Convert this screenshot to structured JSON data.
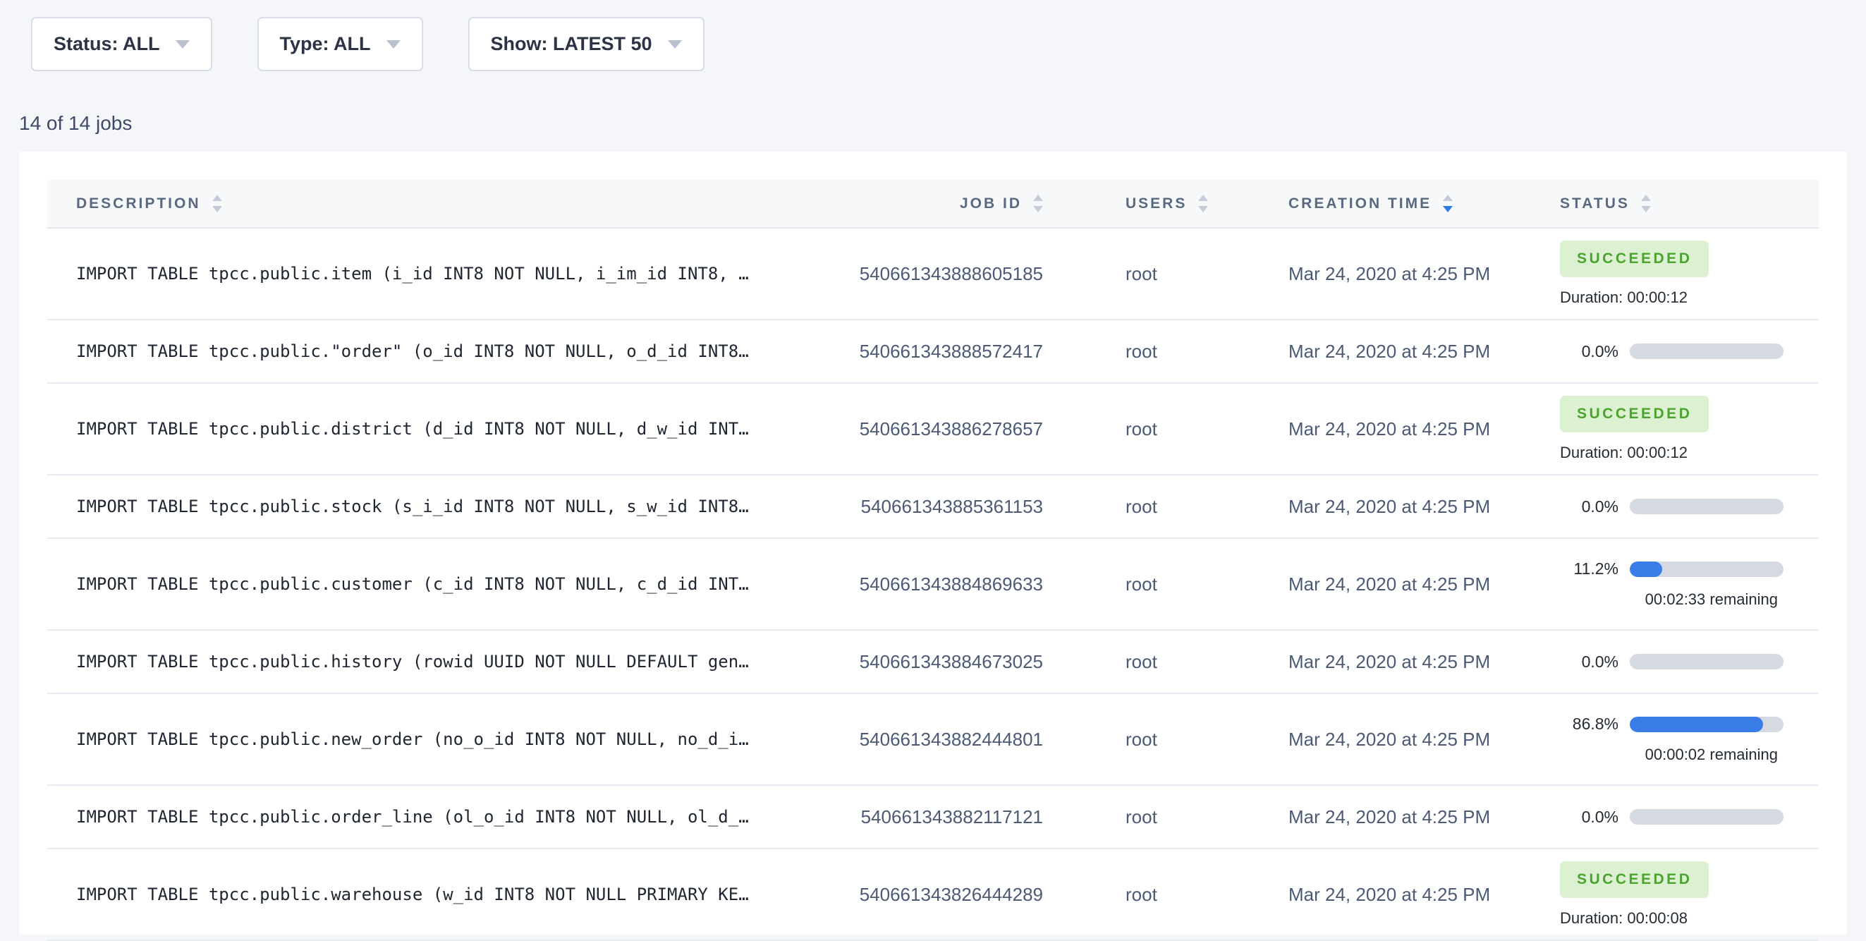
{
  "filters": [
    {
      "label": "Status: ALL"
    },
    {
      "label": "Type: ALL"
    },
    {
      "label": "Show: LATEST 50"
    }
  ],
  "summary": "14 of 14 jobs",
  "colors": {
    "accent_blue": "#3a7ce8",
    "sort_active_blue": "#2f7ce8",
    "success_text_green": "#4da32f",
    "success_bg_green": "#dcf1d1",
    "progress_track_gray": "#d5d9e2",
    "page_background": "#f4f6fa"
  },
  "table": {
    "columns": [
      {
        "label": "DESCRIPTION",
        "sort": null
      },
      {
        "label": "JOB ID",
        "sort": null
      },
      {
        "label": "USERS",
        "sort": null
      },
      {
        "label": "CREATION TIME",
        "sort": "desc"
      },
      {
        "label": "STATUS",
        "sort": null
      }
    ],
    "rows": [
      {
        "description": "IMPORT TABLE tpcc.public.item (i_id INT8 NOT NULL, i_im_id INT8, …",
        "job_id": "540661343888605185",
        "user": "root",
        "creation_time": "Mar 24, 2020 at 4:25 PM",
        "status": {
          "type": "succeeded",
          "label": "SUCCEEDED",
          "duration": "Duration: 00:00:12"
        }
      },
      {
        "description": "IMPORT TABLE tpcc.public.\"order\" (o_id INT8 NOT NULL, o_d_id INT8…",
        "job_id": "540661343888572417",
        "user": "root",
        "creation_time": "Mar 24, 2020 at 4:25 PM",
        "status": {
          "type": "running",
          "percent": "0.0%",
          "fraction": 0
        }
      },
      {
        "description": "IMPORT TABLE tpcc.public.district (d_id INT8 NOT NULL, d_w_id INT…",
        "job_id": "540661343886278657",
        "user": "root",
        "creation_time": "Mar 24, 2020 at 4:25 PM",
        "status": {
          "type": "succeeded",
          "label": "SUCCEEDED",
          "duration": "Duration: 00:00:12"
        }
      },
      {
        "description": "IMPORT TABLE tpcc.public.stock (s_i_id INT8 NOT NULL, s_w_id INT8…",
        "job_id": "540661343885361153",
        "user": "root",
        "creation_time": "Mar 24, 2020 at 4:25 PM",
        "status": {
          "type": "running",
          "percent": "0.0%",
          "fraction": 0
        }
      },
      {
        "description": "IMPORT TABLE tpcc.public.customer (c_id INT8 NOT NULL, c_d_id INT…",
        "job_id": "540661343884869633",
        "user": "root",
        "creation_time": "Mar 24, 2020 at 4:25 PM",
        "status": {
          "type": "running",
          "percent": "11.2%",
          "fraction": 0.112,
          "remaining": "00:02:33 remaining"
        }
      },
      {
        "description": "IMPORT TABLE tpcc.public.history (rowid UUID NOT NULL DEFAULT gen…",
        "job_id": "540661343884673025",
        "user": "root",
        "creation_time": "Mar 24, 2020 at 4:25 PM",
        "status": {
          "type": "running",
          "percent": "0.0%",
          "fraction": 0
        }
      },
      {
        "description": "IMPORT TABLE tpcc.public.new_order (no_o_id INT8 NOT NULL, no_d_i…",
        "job_id": "540661343882444801",
        "user": "root",
        "creation_time": "Mar 24, 2020 at 4:25 PM",
        "status": {
          "type": "running",
          "percent": "86.8%",
          "fraction": 0.868,
          "remaining": "00:00:02 remaining"
        }
      },
      {
        "description": "IMPORT TABLE tpcc.public.order_line (ol_o_id INT8 NOT NULL, ol_d_…",
        "job_id": "540661343882117121",
        "user": "root",
        "creation_time": "Mar 24, 2020 at 4:25 PM",
        "status": {
          "type": "running",
          "percent": "0.0%",
          "fraction": 0
        }
      },
      {
        "description": "IMPORT TABLE tpcc.public.warehouse (w_id INT8 NOT NULL PRIMARY KE…",
        "job_id": "540661343826444289",
        "user": "root",
        "creation_time": "Mar 24, 2020 at 4:25 PM",
        "status": {
          "type": "succeeded",
          "label": "SUCCEEDED",
          "duration": "Duration: 00:00:08"
        }
      }
    ]
  }
}
